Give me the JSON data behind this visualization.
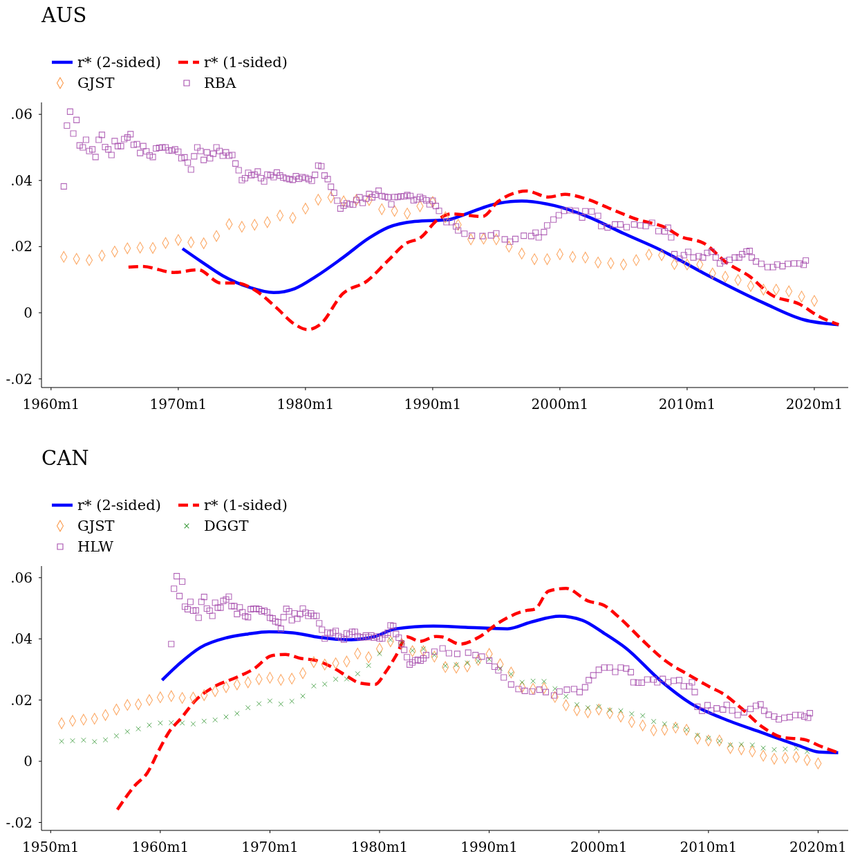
{
  "chart_data": [
    {
      "type": "line",
      "title": "AUS",
      "legend": "top",
      "xlim": [
        "1959-04",
        "2022-09"
      ],
      "ylim": [
        -0.0226,
        0.0636
      ],
      "xticks": [
        {
          "value": "1960-01",
          "label": "1960m1"
        },
        {
          "value": "1970-01",
          "label": "1970m1"
        },
        {
          "value": "1980-01",
          "label": "1980m1"
        },
        {
          "value": "1990-01",
          "label": "1990m1"
        },
        {
          "value": "2000-01",
          "label": "2000m1"
        },
        {
          "value": "2010-01",
          "label": "2010m1"
        },
        {
          "value": "2020-01",
          "label": "2020m1"
        }
      ],
      "yticks": [
        {
          "value": -0.02,
          "label": "-.02"
        },
        0,
        {
          "value": 0.02,
          "label": ".02"
        },
        {
          "value": 0.04,
          "label": ".04"
        },
        {
          "value": 0.06,
          "label": ".06"
        }
      ],
      "series": [
        {
          "name": "r* (2-sided)",
          "type": "line",
          "color": "#0000ff",
          "line_style": "solid",
          "x": [
            "1970-05",
            "1971-11",
            "1973-07",
            "1975-08",
            "1977-07",
            "1979-03",
            "1980-11",
            "1982-12",
            "1985-01",
            "1986-07",
            "1988-08",
            "1991-05",
            "1991-12",
            "1995-03",
            "1997-01",
            "1999-08",
            "2002-03",
            "2005-01",
            "2007-12",
            "2011-08",
            "2016-01",
            "2019-03",
            "2021-12"
          ],
          "values": [
            0.0194,
            0.0154,
            0.0112,
            0.0077,
            0.0061,
            0.0073,
            0.011,
            0.0166,
            0.0226,
            0.0258,
            0.0276,
            0.0282,
            0.0289,
            0.0331,
            0.0338,
            0.0324,
            0.0291,
            0.024,
            0.019,
            0.0114,
            0.003,
            -0.0021,
            -0.0036
          ]
        },
        {
          "name": "r* (1-sided)",
          "type": "line",
          "color": "#ff0000",
          "line_style": "dashed",
          "x": [
            "1966-02",
            "1967-03",
            "1969-09",
            "1971-08",
            "1973-05",
            "1974-08",
            "1976-01",
            "1977-09",
            "1979-03",
            "1980-03",
            "1981-03",
            "1982-12",
            "1984-11",
            "1986-07",
            "1987-12",
            "1989-01",
            "1990-06",
            "1991-07",
            "1993-12",
            "1995-03",
            "1997-06",
            "1999-02",
            "2000-06",
            "2002-03",
            "2004-01",
            "2006-02",
            "2008-05",
            "2009-06",
            "2011-06",
            "2013-02",
            "2014-12",
            "2016-08",
            "2018-11",
            "2020-06",
            "2021-12"
          ],
          "values": [
            0.0138,
            0.014,
            0.0122,
            0.013,
            0.009,
            0.009,
            0.0069,
            0.0017,
            -0.0035,
            -0.0051,
            -0.0035,
            0.0057,
            0.0096,
            0.0158,
            0.021,
            0.0226,
            0.0282,
            0.0299,
            0.0291,
            0.0337,
            0.0368,
            0.035,
            0.0358,
            0.0343,
            0.0314,
            0.0282,
            0.0257,
            0.0232,
            0.0208,
            0.0152,
            0.011,
            0.0055,
            0.0026,
            -0.0012,
            -0.0036
          ]
        },
        {
          "name": "GJST",
          "type": "scatter",
          "marker": "diamond",
          "color": "#fb9a4b",
          "x": [
            "1961",
            "1962",
            "1963",
            "1964",
            "1965",
            "1966",
            "1967",
            "1968",
            "1969",
            "1970",
            "1971",
            "1972",
            "1973",
            "1974",
            "1975",
            "1976",
            "1977",
            "1978",
            "1979",
            "1980",
            "1981",
            "1982",
            "1983",
            "1984",
            "1985",
            "1986",
            "1987",
            "1988",
            "1989",
            "1990",
            "1991",
            "1992",
            "1993",
            "1994",
            "1995",
            "1996",
            "1997",
            "1998",
            "1999",
            "2000",
            "2001",
            "2002",
            "2003",
            "2004",
            "2005",
            "2006",
            "2007",
            "2008",
            "2009",
            "2010",
            "2011",
            "2012",
            "2013",
            "2014",
            "2015",
            "2016",
            "2017",
            "2018",
            "2019",
            "2020"
          ],
          "values": [
            0.0169,
            0.0163,
            0.0159,
            0.0173,
            0.0185,
            0.0195,
            0.0197,
            0.0196,
            0.0211,
            0.022,
            0.0213,
            0.021,
            0.0232,
            0.0268,
            0.026,
            0.0266,
            0.0274,
            0.0294,
            0.0287,
            0.0315,
            0.0342,
            0.0349,
            0.0337,
            0.0341,
            0.0341,
            0.0313,
            0.0308,
            0.03,
            0.0322,
            0.0335,
            0.0289,
            0.0266,
            0.0222,
            0.0224,
            0.0222,
            0.02,
            0.0179,
            0.0162,
            0.0162,
            0.0177,
            0.0169,
            0.0167,
            0.0152,
            0.015,
            0.0146,
            0.0159,
            0.0176,
            0.0174,
            0.0147,
            0.0146,
            0.0146,
            0.0119,
            0.0109,
            0.0099,
            0.0081,
            0.007,
            0.007,
            0.0065,
            0.0049,
            0.0036
          ]
        },
        {
          "name": "RBA",
          "type": "scatter",
          "marker": "square",
          "color": "#a64dad",
          "x": [
            "1961-01",
            "1961-04",
            "1961-07",
            "1961-10",
            "1962-01",
            "1962-04",
            "1962-07",
            "1962-10",
            "1963-01",
            "1963-04",
            "1963-07",
            "1963-10",
            "1964-01",
            "1964-04",
            "1964-07",
            "1964-10",
            "1965-01",
            "1965-04",
            "1965-07",
            "1965-10",
            "1966-01",
            "1966-04",
            "1966-07",
            "1966-10",
            "1967-01",
            "1967-04",
            "1967-07",
            "1967-10",
            "1968-01",
            "1968-04",
            "1968-07",
            "1968-10",
            "1969-01",
            "1969-04",
            "1969-07",
            "1969-10",
            "1970-01",
            "1970-04",
            "1970-07",
            "1970-10",
            "1971-01",
            "1971-04",
            "1971-07",
            "1971-10",
            "1972-01",
            "1972-04",
            "1972-07",
            "1972-10",
            "1973-01",
            "1973-04",
            "1973-07",
            "1973-10",
            "1974-01",
            "1974-04",
            "1974-07",
            "1974-10",
            "1975-01",
            "1975-04",
            "1975-07",
            "1975-10",
            "1976-01",
            "1976-04",
            "1976-07",
            "1976-10",
            "1977-01",
            "1977-04",
            "1977-07",
            "1977-10",
            "1978-01",
            "1978-04",
            "1978-07",
            "1978-10",
            "1979-01",
            "1979-04",
            "1979-07",
            "1979-10",
            "1980-01",
            "1980-04",
            "1980-07",
            "1980-10",
            "1981-01",
            "1981-04",
            "1981-07",
            "1981-10",
            "1982-01",
            "1982-04",
            "1982-07",
            "1982-10",
            "1983-01",
            "1983-04",
            "1983-07",
            "1983-10",
            "1984-01",
            "1984-04",
            "1984-07",
            "1984-10",
            "1985-01",
            "1985-04",
            "1985-07",
            "1985-10",
            "1986-01",
            "1986-04",
            "1986-07",
            "1986-10",
            "1987-01",
            "1987-04",
            "1987-07",
            "1987-10",
            "1988-01",
            "1988-04",
            "1988-07",
            "1988-10",
            "1989-01",
            "1989-04",
            "1989-07",
            "1989-10",
            "1990-01",
            "1990-04",
            "1990-07",
            "1991-02",
            "1991-07",
            "1991-11",
            "1992-01",
            "1992-07",
            "1993-02",
            "1993-12",
            "1994-08",
            "1995-01",
            "1995-09",
            "1996-02",
            "1996-07",
            "1997-03",
            "1997-10",
            "1998-02",
            "1998-05",
            "1998-10",
            "1999-01",
            "1999-07",
            "1999-12",
            "2000-05",
            "2000-10",
            "2001-04",
            "2001-10",
            "2002-01",
            "2002-07",
            "2003-01",
            "2003-04",
            "2003-10",
            "2004-05",
            "2004-10",
            "2005-04",
            "2005-11",
            "2006-05",
            "2006-10",
            "2007-04",
            "2007-10",
            "2008-04",
            "2008-07",
            "2008-10",
            "2009-01",
            "2009-06",
            "2009-10",
            "2010-02",
            "2010-07",
            "2010-12",
            "2011-04",
            "2011-08",
            "2011-12",
            "2012-04",
            "2012-08",
            "2012-12",
            "2013-05",
            "2013-10",
            "2014-02",
            "2014-05",
            "2014-09",
            "2014-12",
            "2015-02",
            "2015-06",
            "2015-11",
            "2016-05",
            "2016-10",
            "2017-02",
            "2017-07",
            "2017-12",
            "2018-06",
            "2018-11",
            "2019-03",
            "2019-05"
          ],
          "values": [
            0.0382,
            0.0566,
            0.0608,
            0.0542,
            0.0583,
            0.0506,
            0.05,
            0.0523,
            0.0489,
            0.0494,
            0.0471,
            0.0523,
            0.0538,
            0.0501,
            0.0494,
            0.0477,
            0.0519,
            0.0504,
            0.0504,
            0.0525,
            0.053,
            0.054,
            0.0508,
            0.051,
            0.0483,
            0.0504,
            0.0488,
            0.0476,
            0.0471,
            0.0497,
            0.0499,
            0.05,
            0.05,
            0.0491,
            0.049,
            0.0494,
            0.0487,
            0.0467,
            0.047,
            0.0454,
            0.0433,
            0.0473,
            0.05,
            0.0489,
            0.0462,
            0.0485,
            0.0467,
            0.0481,
            0.05,
            0.0489,
            0.0475,
            0.0485,
            0.0475,
            0.0477,
            0.0451,
            0.0431,
            0.0401,
            0.0407,
            0.0423,
            0.0416,
            0.0418,
            0.0427,
            0.0407,
            0.0397,
            0.0418,
            0.0416,
            0.041,
            0.0424,
            0.0415,
            0.0409,
            0.0406,
            0.0404,
            0.0402,
            0.0413,
            0.0405,
            0.041,
            0.0408,
            0.0404,
            0.0399,
            0.0417,
            0.0445,
            0.0443,
            0.0415,
            0.0404,
            0.0381,
            0.0363,
            0.0339,
            0.0315,
            0.0324,
            0.0331,
            0.0328,
            0.0327,
            0.0341,
            0.0349,
            0.0332,
            0.0345,
            0.0359,
            0.0349,
            0.0357,
            0.0369,
            0.0353,
            0.0351,
            0.0349,
            0.0328,
            0.035,
            0.035,
            0.0352,
            0.0352,
            0.0356,
            0.0353,
            0.034,
            0.0343,
            0.035,
            0.0345,
            0.034,
            0.0328,
            0.0339,
            0.0323,
            0.0308,
            0.0274,
            0.0274,
            0.0261,
            0.0249,
            0.0239,
            0.0233,
            0.0232,
            0.0234,
            0.024,
            0.0222,
            0.0215,
            0.0223,
            0.0233,
            0.0232,
            0.0242,
            0.0228,
            0.0244,
            0.0264,
            0.0282,
            0.0295,
            0.0308,
            0.031,
            0.0308,
            0.0288,
            0.0307,
            0.0306,
            0.0293,
            0.0262,
            0.0258,
            0.0267,
            0.0267,
            0.0259,
            0.0267,
            0.0264,
            0.0262,
            0.0272,
            0.0247,
            0.0246,
            0.0257,
            0.0228,
            0.0177,
            0.0163,
            0.0174,
            0.0184,
            0.0167,
            0.0171,
            0.0167,
            0.0181,
            0.0185,
            0.0167,
            0.0149,
            0.0156,
            0.016,
            0.0167,
            0.0167,
            0.0177,
            0.0185,
            0.0187,
            0.0167,
            0.0155,
            0.0148,
            0.0138,
            0.0138,
            0.0146,
            0.0141,
            0.0148,
            0.0149,
            0.0149,
            0.0145,
            0.0158
          ]
        }
      ]
    },
    {
      "type": "line",
      "title": "CAN",
      "legend": "top",
      "xlim": [
        "1949-03",
        "2022-10"
      ],
      "ylim": [
        -0.0226,
        0.0638
      ],
      "xticks": [
        {
          "value": "1950-01",
          "label": "1950m1"
        },
        {
          "value": "1960-01",
          "label": "1960m1"
        },
        {
          "value": "1970-01",
          "label": "1970m1"
        },
        {
          "value": "1980-01",
          "label": "1980m1"
        },
        {
          "value": "1990-01",
          "label": "1990m1"
        },
        {
          "value": "2000-01",
          "label": "2000m1"
        },
        {
          "value": "2010-01",
          "label": "2010m1"
        },
        {
          "value": "2020-01",
          "label": "2020m1"
        }
      ],
      "yticks": [
        {
          "value": -0.02,
          "label": "-.02"
        },
        0,
        {
          "value": 0.02,
          "label": ".02"
        },
        {
          "value": 0.04,
          "label": ".04"
        },
        {
          "value": 0.06,
          "label": ".06"
        }
      ],
      "series": [
        {
          "name": "r* (2-sided)",
          "type": "line",
          "color": "#0000ff",
          "line_style": "solid",
          "x": [
            "1960-03",
            "1961-10",
            "1963-09",
            "1966-02",
            "1968-01",
            "1969-12",
            "1972-02",
            "1974-07",
            "1977-03",
            "1979-05",
            "1981-07",
            "1984-12",
            "1987-11",
            "1991-09",
            "1993-12",
            "1996-06",
            "1998-07",
            "2000-07",
            "2002-07",
            "2005-08",
            "2008-09",
            "2011-03",
            "2015-01",
            "2018-04",
            "2020-02",
            "2021-11"
          ],
          "values": [
            0.0265,
            0.0319,
            0.0372,
            0.0404,
            0.0416,
            0.0423,
            0.042,
            0.0405,
            0.0397,
            0.0405,
            0.0433,
            0.0442,
            0.0438,
            0.0433,
            0.0456,
            0.0474,
            0.0461,
            0.0418,
            0.0369,
            0.0265,
            0.0183,
            0.0142,
            0.0092,
            0.0051,
            0.003,
            0.0028
          ]
        },
        {
          "name": "r* (1-sided)",
          "type": "line",
          "color": "#ff0000",
          "line_style": "dashed",
          "x": [
            "1956-02",
            "1957-09",
            "1958-11",
            "1959-11",
            "1960-10",
            "1962-01",
            "1963-03",
            "1964-11",
            "1967-01",
            "1968-07",
            "1970-03",
            "1971-06",
            "1972-11",
            "1974-04",
            "1975-10",
            "1977-03",
            "1978-03",
            "1979-08",
            "1980-08",
            "1981-07",
            "1982-07",
            "1983-09",
            "1985-03",
            "1985-10",
            "1987-05",
            "1989-02",
            "1990-11",
            "1993-06",
            "1994-03",
            "1995-06",
            "1997-01",
            "1999-01",
            "2000-07",
            "2002-01",
            "2004-02",
            "2006-02",
            "2008-03",
            "2010-03",
            "2011-06",
            "2013-01",
            "2015-01",
            "2016-10",
            "2018-10",
            "2020-02",
            "2021-11"
          ],
          "values": [
            -0.0158,
            -0.008,
            -0.0037,
            0.0033,
            0.0093,
            0.0145,
            0.0197,
            0.0242,
            0.0275,
            0.0301,
            0.0345,
            0.0349,
            0.0336,
            0.0329,
            0.0306,
            0.0275,
            0.0256,
            0.0251,
            0.0293,
            0.0345,
            0.0407,
            0.0392,
            0.0408,
            0.0406,
            0.0383,
            0.0406,
            0.0452,
            0.0493,
            0.0497,
            0.0556,
            0.0565,
            0.0524,
            0.0509,
            0.0465,
            0.0392,
            0.0328,
            0.0283,
            0.0242,
            0.0219,
            0.0173,
            0.011,
            0.0078,
            0.0071,
            0.0051,
            0.0028
          ]
        },
        {
          "name": "GJST",
          "type": "scatter",
          "marker": "diamond",
          "color": "#fb9a4b",
          "x": [
            "1951",
            "1952",
            "1953",
            "1954",
            "1955",
            "1956",
            "1957",
            "1958",
            "1959",
            "1960",
            "1961",
            "1962",
            "1963",
            "1964",
            "1965",
            "1966",
            "1967",
            "1968",
            "1969",
            "1970",
            "1971",
            "1972",
            "1973",
            "1974",
            "1975",
            "1976",
            "1977",
            "1978",
            "1979",
            "1980",
            "1981",
            "1982",
            "1983",
            "1984",
            "1985",
            "1986",
            "1987",
            "1988",
            "1989",
            "1990",
            "1991",
            "1992",
            "1993",
            "1994",
            "1995",
            "1996",
            "1997",
            "1998",
            "1999",
            "2000",
            "2001",
            "2002",
            "2003",
            "2004",
            "2005",
            "2006",
            "2007",
            "2008",
            "2009",
            "2010",
            "2011",
            "2012",
            "2013",
            "2014",
            "2015",
            "2016",
            "2017",
            "2018",
            "2019",
            "2020"
          ],
          "values": [
            0.0124,
            0.0132,
            0.0136,
            0.0139,
            0.0151,
            0.0169,
            0.0184,
            0.0186,
            0.02,
            0.0209,
            0.0213,
            0.0207,
            0.0208,
            0.0216,
            0.0229,
            0.0242,
            0.0251,
            0.0258,
            0.0268,
            0.0273,
            0.0266,
            0.027,
            0.0288,
            0.0324,
            0.0316,
            0.032,
            0.0326,
            0.0352,
            0.034,
            0.0368,
            0.0392,
            0.0384,
            0.036,
            0.036,
            0.0342,
            0.0308,
            0.0306,
            0.031,
            0.0331,
            0.0351,
            0.0317,
            0.029,
            0.0242,
            0.0237,
            0.0239,
            0.021,
            0.0183,
            0.0167,
            0.016,
            0.0169,
            0.0157,
            0.0146,
            0.0128,
            0.0117,
            0.0101,
            0.0103,
            0.011,
            0.0103,
            0.0074,
            0.0068,
            0.0068,
            0.0043,
            0.0039,
            0.0032,
            0.0018,
            0.0008,
            0.0011,
            0.0014,
            0.0004,
            -0.0007
          ]
        },
        {
          "name": "DGGT",
          "type": "scatter",
          "marker": "cross",
          "color": "#3a9a3a",
          "x": [
            "1951",
            "1952",
            "1953",
            "1954",
            "1955",
            "1956",
            "1957",
            "1958",
            "1959",
            "1960",
            "1961",
            "1962",
            "1963",
            "1964",
            "1965",
            "1966",
            "1967",
            "1968",
            "1969",
            "1970",
            "1971",
            "1972",
            "1973",
            "1974",
            "1975",
            "1976",
            "1977",
            "1978",
            "1979",
            "1980",
            "1981",
            "1982",
            "1983",
            "1984",
            "1985",
            "1986",
            "1987",
            "1988",
            "1989",
            "1990",
            "1991",
            "1992",
            "1993",
            "1994",
            "1995",
            "1996",
            "1997",
            "1998",
            "1999",
            "2000",
            "2001",
            "2002",
            "2003",
            "2004",
            "2005",
            "2006",
            "2007",
            "2008",
            "2009",
            "2010",
            "2011",
            "2012",
            "2013",
            "2014",
            "2015",
            "2016",
            "2017",
            "2018",
            "2019"
          ],
          "values": [
            0.0065,
            0.0067,
            0.0069,
            0.0064,
            0.007,
            0.0083,
            0.0097,
            0.0106,
            0.0118,
            0.0125,
            0.0126,
            0.0125,
            0.0122,
            0.0131,
            0.0135,
            0.0145,
            0.0156,
            0.0175,
            0.0188,
            0.0197,
            0.0187,
            0.0196,
            0.0213,
            0.0246,
            0.0252,
            0.0268,
            0.0269,
            0.0286,
            0.0313,
            0.0352,
            0.0397,
            0.0388,
            0.0362,
            0.0367,
            0.0347,
            0.0312,
            0.0315,
            0.0321,
            0.0327,
            0.0333,
            0.0303,
            0.0285,
            0.0258,
            0.0262,
            0.0261,
            0.0237,
            0.0212,
            0.0185,
            0.0175,
            0.0178,
            0.0167,
            0.0165,
            0.0155,
            0.0149,
            0.013,
            0.0122,
            0.0116,
            0.0103,
            0.0085,
            0.0075,
            0.0066,
            0.0053,
            0.0055,
            0.0053,
            0.0043,
            0.0038,
            0.004,
            0.0043,
            0.0032
          ]
        },
        {
          "name": "HLW",
          "type": "scatter",
          "marker": "square",
          "color": "#a64dad",
          "x": [
            "1961-01",
            "1961-04",
            "1961-07",
            "1961-10",
            "1962-01",
            "1962-04",
            "1962-07",
            "1962-10",
            "1963-01",
            "1963-04",
            "1963-07",
            "1963-10",
            "1964-01",
            "1964-04",
            "1964-07",
            "1964-10",
            "1965-01",
            "1965-04",
            "1965-07",
            "1965-10",
            "1966-01",
            "1966-04",
            "1966-07",
            "1966-10",
            "1967-01",
            "1967-04",
            "1967-07",
            "1967-10",
            "1968-01",
            "1968-04",
            "1968-07",
            "1968-10",
            "1969-01",
            "1969-04",
            "1969-07",
            "1969-10",
            "1970-01",
            "1970-04",
            "1970-07",
            "1970-10",
            "1971-01",
            "1971-04",
            "1971-07",
            "1971-10",
            "1972-01",
            "1972-04",
            "1972-07",
            "1972-10",
            "1973-01",
            "1973-04",
            "1973-07",
            "1973-10",
            "1974-01",
            "1974-04",
            "1974-07",
            "1974-10",
            "1975-01",
            "1975-04",
            "1975-07",
            "1975-10",
            "1976-01",
            "1976-04",
            "1976-07",
            "1976-10",
            "1977-01",
            "1977-04",
            "1977-07",
            "1977-10",
            "1978-01",
            "1978-04",
            "1978-07",
            "1978-10",
            "1979-01",
            "1979-04",
            "1979-07",
            "1979-10",
            "1980-01",
            "1980-04",
            "1980-07",
            "1980-10",
            "1981-01",
            "1981-04",
            "1981-07",
            "1981-10",
            "1982-01",
            "1982-04",
            "1982-07",
            "1982-10",
            "1983-01",
            "1983-04",
            "1983-07",
            "1983-10",
            "1984-01",
            "1984-04",
            "1985-01",
            "1985-10",
            "1986-05",
            "1987-02",
            "1988-02",
            "1988-10",
            "1989-05",
            "1990-01",
            "1990-07",
            "1990-11",
            "1991-05",
            "1992-01",
            "1992-09",
            "1993-04",
            "1993-12",
            "1994-08",
            "1995-03",
            "1995-12",
            "1996-06",
            "1997-02",
            "1997-10",
            "1998-04",
            "1998-10",
            "1999-02",
            "1999-07",
            "2000-01",
            "2000-07",
            "2001-01",
            "2001-07",
            "2002-01",
            "2002-07",
            "2002-12",
            "2003-03",
            "2003-08",
            "2003-12",
            "2004-06",
            "2005-01",
            "2005-05",
            "2005-11",
            "2006-05",
            "2006-11",
            "2007-05",
            "2007-10",
            "2008-04",
            "2008-07",
            "2008-10",
            "2009-01",
            "2009-06",
            "2009-12",
            "2010-04",
            "2010-10",
            "2011-05",
            "2011-09",
            "2012-03",
            "2012-09",
            "2013-04",
            "2013-11",
            "2014-05",
            "2014-10",
            "2015-02",
            "2015-07",
            "2016-01",
            "2016-06",
            "2016-12",
            "2017-06",
            "2017-12",
            "2018-06",
            "2018-10",
            "2019-02",
            "2019-04"
          ],
          "values": [
            0.0383,
            0.0564,
            0.0605,
            0.054,
            0.0587,
            0.0505,
            0.0497,
            0.0521,
            0.0492,
            0.0493,
            0.0469,
            0.0521,
            0.0537,
            0.0499,
            0.0492,
            0.0475,
            0.0518,
            0.0502,
            0.0502,
            0.0524,
            0.0529,
            0.0538,
            0.0507,
            0.0507,
            0.0481,
            0.0503,
            0.0487,
            0.0474,
            0.0471,
            0.0497,
            0.0498,
            0.0499,
            0.0497,
            0.049,
            0.0492,
            0.0487,
            0.0469,
            0.0467,
            0.0457,
            0.0454,
            0.0433,
            0.0471,
            0.0498,
            0.049,
            0.0461,
            0.0483,
            0.0466,
            0.0481,
            0.0499,
            0.0486,
            0.0475,
            0.0483,
            0.0475,
            0.0475,
            0.0451,
            0.043,
            0.0401,
            0.0421,
            0.0417,
            0.0421,
            0.0426,
            0.0409,
            0.0404,
            0.0398,
            0.0418,
            0.0414,
            0.0423,
            0.0423,
            0.0409,
            0.0405,
            0.0405,
            0.0411,
            0.0405,
            0.0411,
            0.0404,
            0.0408,
            0.0401,
            0.0401,
            0.0414,
            0.042,
            0.0444,
            0.0442,
            0.0416,
            0.0404,
            0.0384,
            0.0364,
            0.034,
            0.0316,
            0.0323,
            0.033,
            0.0332,
            0.0329,
            0.0336,
            0.0347,
            0.0358,
            0.0369,
            0.0353,
            0.0351,
            0.0355,
            0.0347,
            0.0342,
            0.0329,
            0.0309,
            0.0297,
            0.0274,
            0.0251,
            0.0236,
            0.023,
            0.0228,
            0.0234,
            0.0226,
            0.0215,
            0.0228,
            0.0234,
            0.0236,
            0.0226,
            0.0242,
            0.0265,
            0.0281,
            0.0299,
            0.0306,
            0.0306,
            0.0292,
            0.0306,
            0.0303,
            0.0291,
            0.0258,
            0.0257,
            0.0257,
            0.0267,
            0.0267,
            0.0258,
            0.0269,
            0.0258,
            0.0263,
            0.0265,
            0.0245,
            0.0245,
            0.0258,
            0.0226,
            0.0178,
            0.0165,
            0.0183,
            0.0166,
            0.0173,
            0.0169,
            0.0184,
            0.0166,
            0.0151,
            0.016,
            0.0171,
            0.0181,
            0.0186,
            0.0165,
            0.0152,
            0.0146,
            0.0137,
            0.0142,
            0.0144,
            0.0151,
            0.0151,
            0.0146,
            0.0142,
            0.0157
          ]
        }
      ]
    }
  ]
}
